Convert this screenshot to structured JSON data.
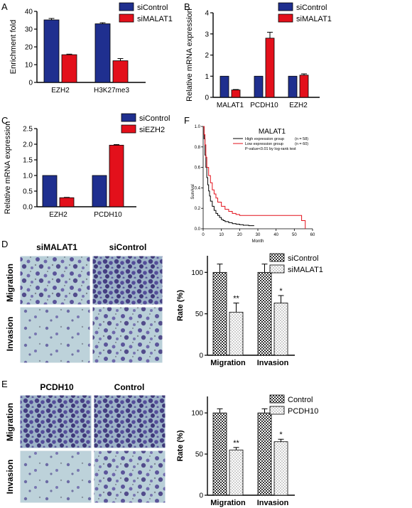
{
  "panel_letters": {
    "A": "A",
    "B": "B",
    "C": "C",
    "D": "D",
    "E": "E",
    "F": "F"
  },
  "colors": {
    "blue": "#1f2f8f",
    "red": "#e3101b",
    "black": "#000000",
    "survival_high": "#000000",
    "survival_low": "#e3101b",
    "micro_bg": "#b9cfd8",
    "cell": "#4a3f8f"
  },
  "chart_data": [
    {
      "id": "A",
      "type": "bar",
      "ylabel": "Enrichment fold",
      "categories": [
        "EZH2",
        "H3K27me3"
      ],
      "ylim": [
        0,
        40
      ],
      "yticks": [
        0,
        10,
        20,
        30,
        40
      ],
      "series": [
        {
          "name": "siControl",
          "values": [
            35.2,
            33.0
          ],
          "errors": [
            0.8,
            0.6
          ]
        },
        {
          "name": "siMALAT1",
          "values": [
            15.6,
            12.2
          ],
          "errors": [
            0.3,
            1.2
          ]
        }
      ]
    },
    {
      "id": "B",
      "type": "bar",
      "ylabel": "Relative mRNA expression",
      "categories": [
        "MALAT1",
        "PCDH10",
        "EZH2"
      ],
      "ylim": [
        0,
        4
      ],
      "yticks": [
        0,
        1,
        2,
        3,
        4
      ],
      "series": [
        {
          "name": "siControl",
          "values": [
            1.0,
            1.0,
            1.0
          ],
          "errors": [
            0,
            0,
            0
          ]
        },
        {
          "name": "siMALAT1",
          "values": [
            0.35,
            2.8,
            1.05
          ],
          "errors": [
            0.02,
            0.28,
            0.06
          ]
        }
      ]
    },
    {
      "id": "C",
      "type": "bar",
      "ylabel": "Relative mRNA expression",
      "categories": [
        "EZH2",
        "PCDH10"
      ],
      "ylim": [
        0,
        2.5
      ],
      "yticks": [
        "0.0",
        "0.5",
        "1.0",
        "1.5",
        "2.0",
        "2.5"
      ],
      "series": [
        {
          "name": "siControl",
          "values": [
            1.0,
            1.0
          ],
          "errors": [
            0,
            0
          ]
        },
        {
          "name": "siEZH2",
          "values": [
            0.29,
            1.97
          ],
          "errors": [
            0.01,
            0.02
          ]
        }
      ]
    },
    {
      "id": "F",
      "type": "line",
      "title": "MALAT1",
      "ylabel": "Survival",
      "xlabel": "Month",
      "xlim": [
        0,
        60
      ],
      "ylim": [
        0,
        1.0
      ],
      "xticks": [
        0,
        10,
        20,
        30,
        40,
        50,
        60
      ],
      "yticks": [
        "0.0",
        "0.2",
        "0.4",
        "0.6",
        "0.8",
        "1.0"
      ],
      "legend": [
        {
          "name": "High expression group",
          "n": "(n = 58)"
        },
        {
          "name": "Low  expression group",
          "n": "(n = 60)"
        }
      ],
      "note": "P-value<0.01 by log-rank test",
      "series": [
        {
          "name": "High expression group",
          "x": [
            0,
            0.5,
            1,
            1.5,
            2,
            2.5,
            3,
            3.5,
            4,
            5,
            6,
            7,
            8,
            9,
            10,
            11,
            12,
            14,
            16,
            18,
            20,
            22,
            25,
            28
          ],
          "y": [
            1.0,
            0.88,
            0.72,
            0.6,
            0.5,
            0.43,
            0.37,
            0.32,
            0.27,
            0.22,
            0.18,
            0.15,
            0.13,
            0.11,
            0.09,
            0.08,
            0.07,
            0.06,
            0.05,
            0.045,
            0.04,
            0.035,
            0.03,
            0.03
          ]
        },
        {
          "name": "Low  expression group",
          "x": [
            0,
            0.5,
            1,
            1.5,
            2,
            3,
            4,
            5,
            6,
            7,
            8,
            10,
            12,
            14,
            16,
            18,
            20,
            25,
            30,
            35,
            40,
            45,
            50,
            54,
            56
          ],
          "y": [
            1.0,
            0.92,
            0.82,
            0.7,
            0.6,
            0.52,
            0.45,
            0.38,
            0.34,
            0.3,
            0.26,
            0.22,
            0.19,
            0.17,
            0.15,
            0.14,
            0.13,
            0.13,
            0.13,
            0.13,
            0.13,
            0.13,
            0.13,
            0.08,
            0.0
          ]
        }
      ]
    },
    {
      "id": "D",
      "type": "bar",
      "ylabel": "Rate (%)",
      "categories": [
        "Migration",
        "Invasion"
      ],
      "ylim": [
        0,
        120
      ],
      "yticks": [
        0,
        50,
        100
      ],
      "series": [
        {
          "name": "siControl",
          "values": [
            100,
            100
          ],
          "errors": [
            10,
            10
          ]
        },
        {
          "name": "siMALAT1",
          "values": [
            52,
            63
          ],
          "errors": [
            11,
            9
          ]
        }
      ],
      "annotations": [
        "**",
        "*"
      ]
    },
    {
      "id": "E",
      "type": "bar",
      "ylabel": "Rate (%)",
      "categories": [
        "Migration",
        "Invasion"
      ],
      "ylim": [
        0,
        120
      ],
      "yticks": [
        0,
        50,
        100
      ],
      "series": [
        {
          "name": "Control",
          "values": [
            100,
            100
          ],
          "errors": [
            5,
            5
          ]
        },
        {
          "name": "PCDH10",
          "values": [
            55,
            65
          ],
          "errors": [
            3,
            3
          ]
        }
      ],
      "annotations": [
        "**",
        "*"
      ]
    }
  ],
  "micro_d": {
    "col1": "siMALAT1",
    "col2": "siControl",
    "row1": "Migration",
    "row2": "Invasion"
  },
  "micro_e": {
    "col1": "PCDH10",
    "col2": "Control",
    "row1": "Migration",
    "row2": "Invasion"
  }
}
